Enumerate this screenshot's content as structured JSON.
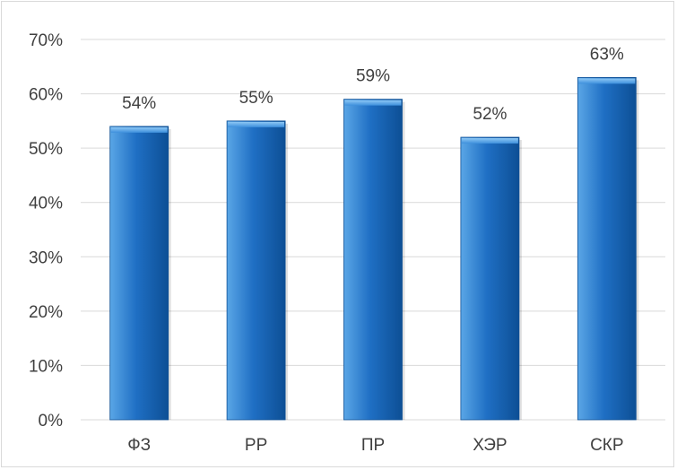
{
  "chart_data": {
    "type": "bar",
    "categories": [
      "ФЗ",
      "РР",
      "ПР",
      "ХЭР",
      "СКР"
    ],
    "values": [
      54,
      55,
      59,
      52,
      63
    ],
    "data_labels": [
      "54%",
      "55%",
      "59%",
      "52%",
      "63%"
    ],
    "ylim": [
      0,
      70
    ],
    "yticks": [
      0,
      10,
      20,
      30,
      40,
      50,
      60,
      70
    ],
    "ytick_labels": [
      "0%",
      "10%",
      "20%",
      "30%",
      "40%",
      "50%",
      "60%",
      "70%"
    ],
    "title": "",
    "xlabel": "",
    "ylabel": "",
    "grid": true,
    "legend": "none",
    "colors": {
      "bar_light": "#5aa6e6",
      "bar": "#1f6fc4",
      "bar_dark": "#0d4f95",
      "grid": "#d9d9d9",
      "text": "#404040"
    }
  }
}
